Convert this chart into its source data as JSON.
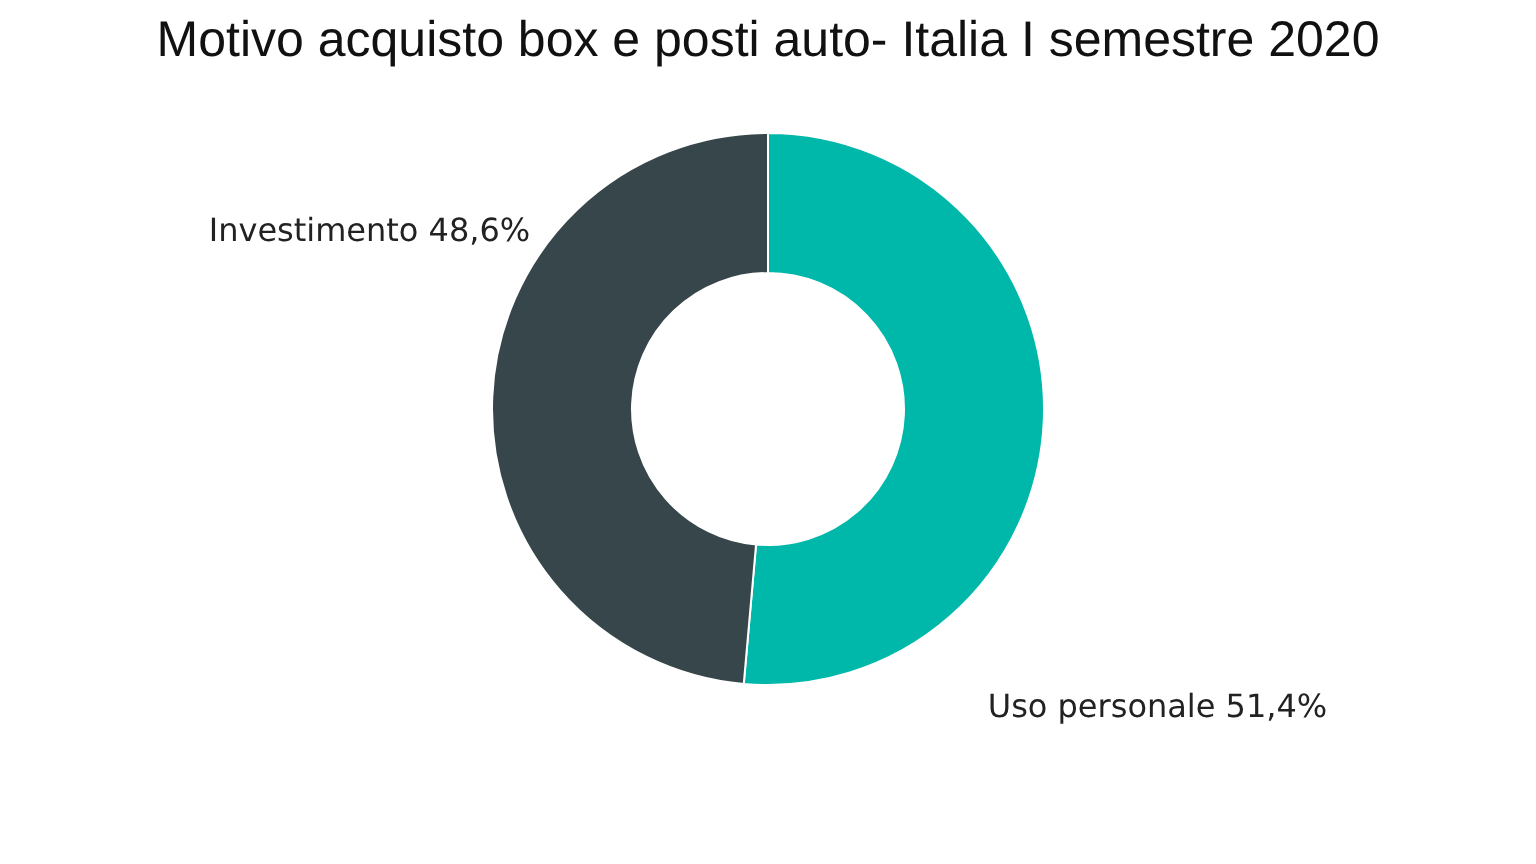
{
  "chart_data": {
    "type": "donut",
    "title": "Motivo acquisto box e posti auto- Italia I semestre 2020",
    "categories": [
      "Uso personale",
      "Investimento"
    ],
    "values": [
      51.4,
      48.6
    ],
    "colors": [
      "#00b8a9",
      "#37464a"
    ],
    "value_labels": [
      "51,4%",
      "48,6%"
    ],
    "legend": false
  }
}
